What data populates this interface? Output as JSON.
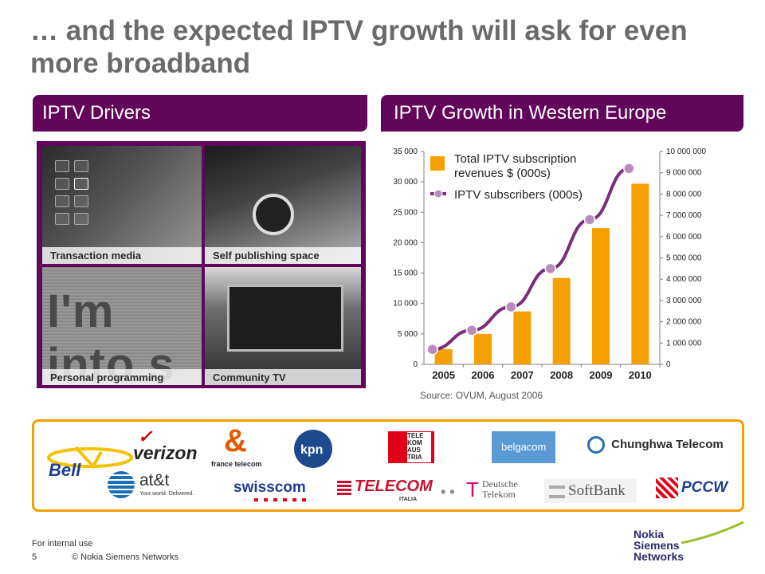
{
  "title": "… and the expected IPTV growth will ask for even more broadband",
  "left_panel": {
    "heading": "IPTV Drivers",
    "tiles": [
      {
        "caption": "Transaction media"
      },
      {
        "caption": "Self publishing space"
      },
      {
        "caption": "Personal programming",
        "image_text": "I'm into s"
      },
      {
        "caption": "Community TV"
      }
    ]
  },
  "right_panel": {
    "heading": "IPTV Growth in Western Europe"
  },
  "chart_data": {
    "type": "bar+line",
    "categories": [
      "2005",
      "2006",
      "2007",
      "2008",
      "2009",
      "2010"
    ],
    "series": [
      {
        "name": "Total IPTV subscription revenues $ (000s)",
        "type": "bar",
        "axis": "left",
        "color": "#f5a000",
        "values": [
          2500,
          5000,
          8700,
          14200,
          22400,
          29700
        ]
      },
      {
        "name": "IPTV subscribers (000s)",
        "type": "line",
        "axis": "right",
        "color": "#7b2b7b",
        "values": [
          700000,
          1600000,
          2700000,
          4500000,
          6800000,
          9200000
        ]
      }
    ],
    "legend_labels": [
      "Total IPTV subscription",
      "revenues $ (000s)",
      "IPTV subscribers (000s)"
    ],
    "left_axis": {
      "ylim": [
        0,
        35000
      ],
      "ticks": [
        "0",
        "5 000",
        "10 000",
        "15 000",
        "20 000",
        "25 000",
        "30 000",
        "35 000"
      ]
    },
    "right_axis": {
      "ylim": [
        0,
        10000000
      ],
      "ticks": [
        "0",
        "1 000 000",
        "2 000 000",
        "3 000 000",
        "4 000 000",
        "5 000 000",
        "6 000 000",
        "7 000 000",
        "8 000 000",
        "9 000 000",
        "10 000 000"
      ]
    },
    "legend_position": "top-left",
    "grid": false
  },
  "source": "Source: OVUM, August 2006",
  "logos": [
    {
      "name": "Bell",
      "text": "Bell"
    },
    {
      "name": "verizon",
      "text": "verizon"
    },
    {
      "name": "france telecom",
      "text": "france telecom"
    },
    {
      "name": "kpn",
      "text": "kpn"
    },
    {
      "name": "Telekom Austria",
      "text": "TELE KOM AUS TRIA"
    },
    {
      "name": "belgacom",
      "text": "belgacom"
    },
    {
      "name": "Chunghwa Telecom",
      "text": "Chunghwa Telecom"
    },
    {
      "name": "at&t",
      "text": "at&t",
      "tagline": "Your world. Delivered."
    },
    {
      "name": "swisscom",
      "text": "swisscom"
    },
    {
      "name": "Telecom Italia",
      "text": "TELECOM",
      "sub": "ITALIA"
    },
    {
      "name": "Deutsche Telekom",
      "text": "Deutsche Telekom"
    },
    {
      "name": "SoftBank",
      "text": "SoftBank"
    },
    {
      "name": "PCCW",
      "text": "PCCW"
    }
  ],
  "footer": {
    "classification": "For internal use",
    "page": "5",
    "copyright": "© Nokia Siemens Networks",
    "brand": "Nokia Siemens Networks"
  },
  "colors": {
    "accent_purple": "#62065c",
    "bar_orange": "#f5a000",
    "line_purple": "#7b2b7b",
    "marker_fill": "#b98bbd",
    "logo_border": "#f0a000"
  }
}
